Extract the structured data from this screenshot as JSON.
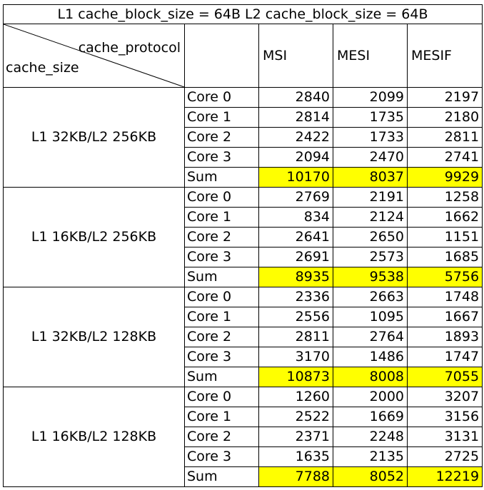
{
  "title": "L1 cache_block_size = 64B  L2 cache_block_size = 64B",
  "header": {
    "diag_top": "cache_protocol",
    "diag_bottom": "cache_size",
    "protocols": [
      "MSI",
      "MESI",
      "MESIF"
    ]
  },
  "groups": [
    {
      "config": "L1 32KB/L2 256KB",
      "rows": [
        {
          "core": "Core 0",
          "msi": "2840",
          "mesi": "2099",
          "mesif": "2197"
        },
        {
          "core": "Core 1",
          "msi": "2814",
          "mesi": "1735",
          "mesif": "2180"
        },
        {
          "core": "Core 2",
          "msi": "2422",
          "mesi": "1733",
          "mesif": "2811"
        },
        {
          "core": "Core 3",
          "msi": "2094",
          "mesi": "2470",
          "mesif": "2741"
        },
        {
          "core": "Sum",
          "msi": "10170",
          "mesi": "8037",
          "mesif": "9929"
        }
      ]
    },
    {
      "config": "L1 16KB/L2 256KB",
      "rows": [
        {
          "core": "Core 0",
          "msi": "2769",
          "mesi": "2191",
          "mesif": "1258"
        },
        {
          "core": "Core 1",
          "msi": "834",
          "mesi": "2124",
          "mesif": "1662"
        },
        {
          "core": "Core 2",
          "msi": "2641",
          "mesi": "2650",
          "mesif": "1151"
        },
        {
          "core": "Core 3",
          "msi": "2691",
          "mesi": "2573",
          "mesif": "1685"
        },
        {
          "core": "Sum",
          "msi": "8935",
          "mesi": "9538",
          "mesif": "5756"
        }
      ]
    },
    {
      "config": "L1 32KB/L2 128KB",
      "rows": [
        {
          "core": "Core 0",
          "msi": "2336",
          "mesi": "2663",
          "mesif": "1748"
        },
        {
          "core": "Core 1",
          "msi": "2556",
          "mesi": "1095",
          "mesif": "1667"
        },
        {
          "core": "Core 2",
          "msi": "2811",
          "mesi": "2764",
          "mesif": "1893"
        },
        {
          "core": "Core 3",
          "msi": "3170",
          "mesi": "1486",
          "mesif": "1747"
        },
        {
          "core": "Sum",
          "msi": "10873",
          "mesi": "8008",
          "mesif": "7055"
        }
      ]
    },
    {
      "config": "L1 16KB/L2 128KB",
      "rows": [
        {
          "core": "Core 0",
          "msi": "1260",
          "mesi": "2000",
          "mesif": "3207"
        },
        {
          "core": "Core 1",
          "msi": "2522",
          "mesi": "1669",
          "mesif": "3156"
        },
        {
          "core": "Core 2",
          "msi": "2371",
          "mesi": "2248",
          "mesif": "3131"
        },
        {
          "core": "Core 3",
          "msi": "1635",
          "mesi": "2135",
          "mesif": "2725"
        },
        {
          "core": "Sum",
          "msi": "7788",
          "mesi": "8052",
          "mesif": "12219"
        }
      ]
    }
  ],
  "colors": {
    "sum_highlight": "#ffff00",
    "grid": "#000000"
  }
}
